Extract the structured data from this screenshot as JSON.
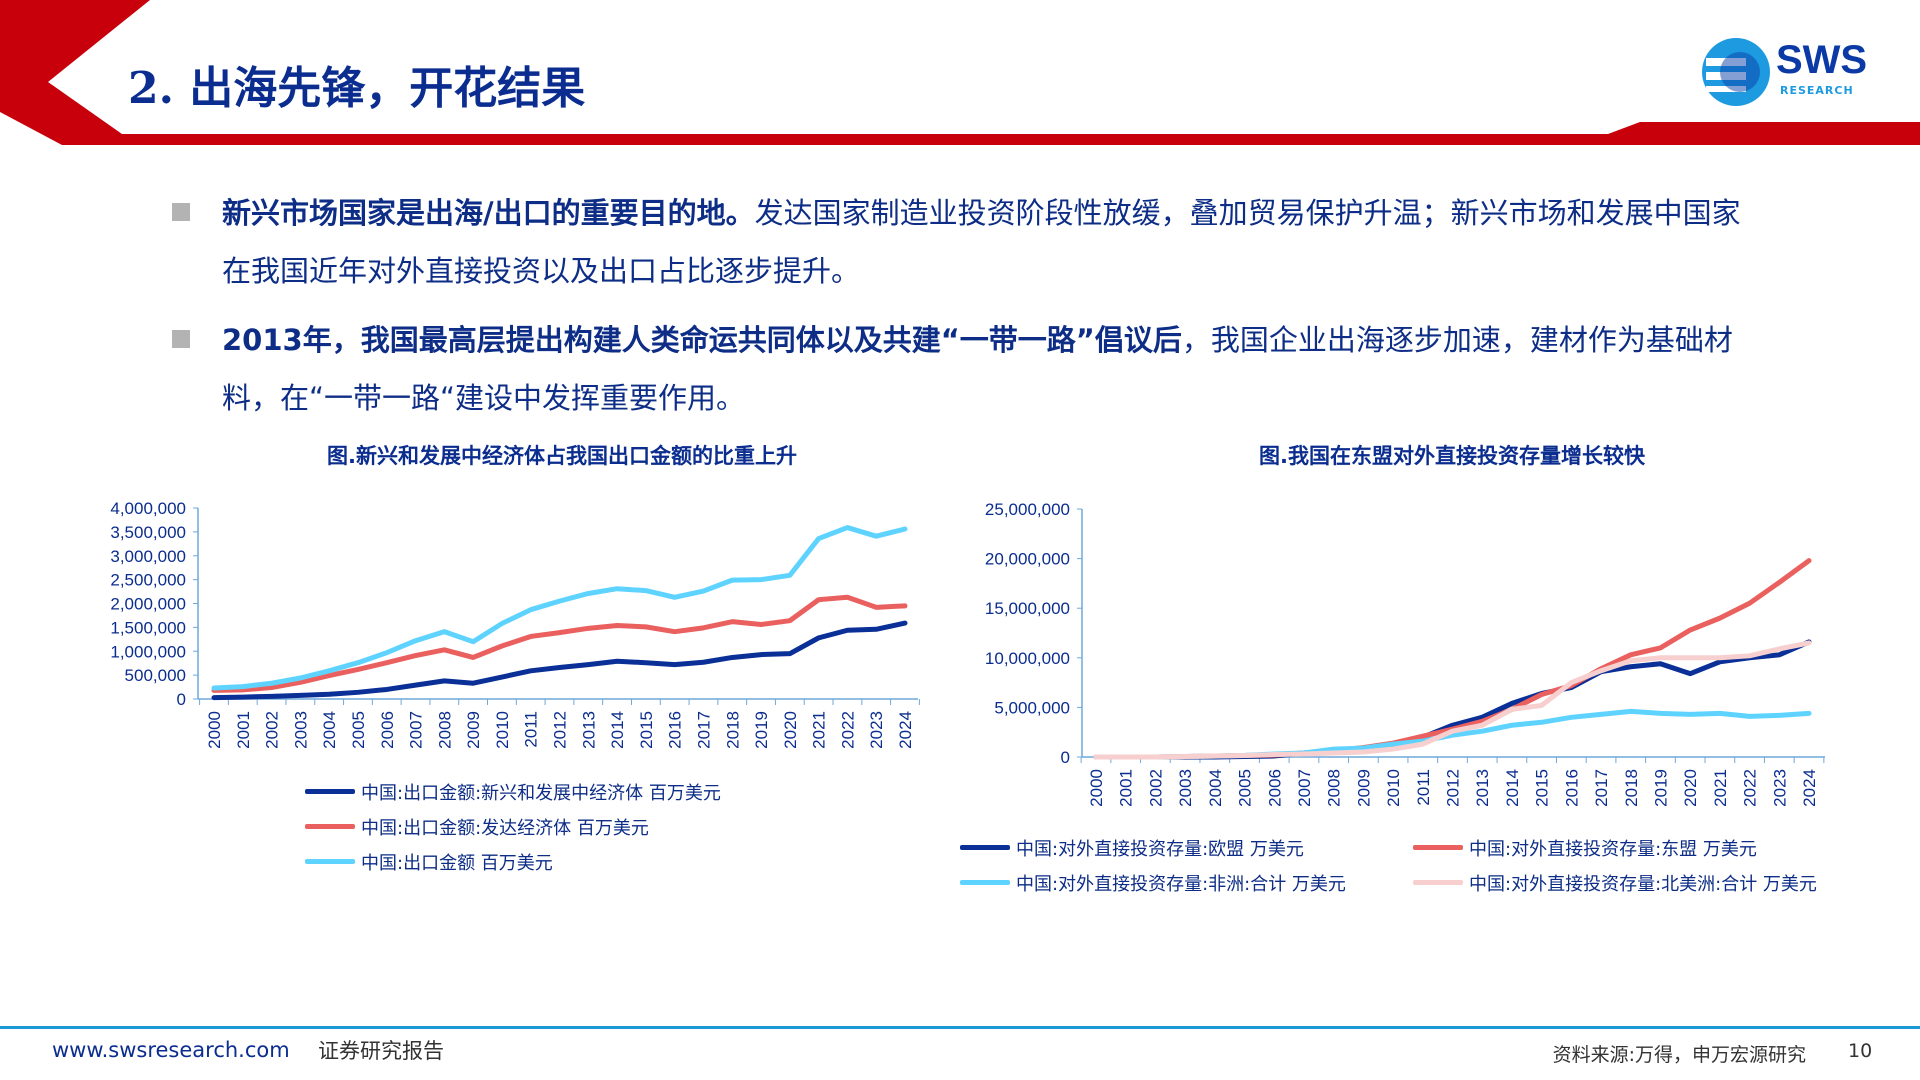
{
  "header": {
    "title": "2. 出海先锋，开花结果",
    "logo_text": "SWS",
    "logo_sub": "RESEARCH",
    "accent": "#c8000b"
  },
  "bullets": [
    {
      "bold": "新兴市场国家是出海/出口的重要目的地。",
      "text": "发达国家制造业投资阶段性放缓，叠加贸易保护升温；新兴市场和发展中国家在我国近年对外直接投资以及出口占比逐步提升。"
    },
    {
      "bold": "2013年，我国最高层提出构建人类命运共同体以及共建“一带一路”倡议后",
      "text": "，我国企业出海逐步加速，建材作为基础材料，在“一带一路“建设中发挥重要作用。"
    }
  ],
  "chart_data": [
    {
      "type": "line",
      "title": "图.新兴和发展中经济体占我国出口金额的比重上升",
      "ylim": [
        0,
        4000000
      ],
      "yticks": [
        "0",
        "500,000",
        "1,000,000",
        "1,500,000",
        "2,000,000",
        "2,500,000",
        "3,000,000",
        "3,500,000",
        "4,000,000"
      ],
      "categories": [
        "2000",
        "2001",
        "2002",
        "2003",
        "2004",
        "2005",
        "2006",
        "2007",
        "2008",
        "2009",
        "2010",
        "2011",
        "2012",
        "2013",
        "2014",
        "2015",
        "2016",
        "2017",
        "2018",
        "2019",
        "2020",
        "2021",
        "2022",
        "2023",
        "2024"
      ],
      "legend": "bottom",
      "series": [
        {
          "name": "中国:出口金额:新兴和发展中经济体 百万美元",
          "color": "#0a2f96",
          "values": [
            30000,
            40000,
            55000,
            75000,
            100000,
            140000,
            200000,
            290000,
            380000,
            330000,
            460000,
            590000,
            660000,
            720000,
            790000,
            760000,
            720000,
            770000,
            870000,
            930000,
            950000,
            1280000,
            1440000,
            1460000,
            1590000
          ]
        },
        {
          "name": "中国:出口金额:发达经济体 百万美元",
          "color": "#e9605e",
          "values": [
            180000,
            190000,
            240000,
            350000,
            490000,
            620000,
            760000,
            910000,
            1030000,
            870000,
            1110000,
            1310000,
            1390000,
            1480000,
            1540000,
            1510000,
            1410000,
            1490000,
            1620000,
            1560000,
            1640000,
            2080000,
            2130000,
            1920000,
            1950000
          ]
        },
        {
          "name": "中国:出口金额 百万美元",
          "color": "#5fd3ff",
          "values": [
            230000,
            260000,
            330000,
            440000,
            590000,
            760000,
            970000,
            1220000,
            1410000,
            1200000,
            1580000,
            1870000,
            2050000,
            2210000,
            2310000,
            2270000,
            2130000,
            2260000,
            2490000,
            2500000,
            2590000,
            3360000,
            3590000,
            3410000,
            3560000
          ]
        }
      ]
    },
    {
      "type": "line",
      "title": "图.我国在东盟对外直接投资存量增长较快",
      "ylim": [
        0,
        25000000
      ],
      "yticks": [
        "0",
        "5,000,000",
        "10,000,000",
        "15,000,000",
        "20,000,000",
        "25,000,000"
      ],
      "categories": [
        "2000",
        "2001",
        "2002",
        "2003",
        "2004",
        "2005",
        "2006",
        "2007",
        "2008",
        "2009",
        "2010",
        "2011",
        "2012",
        "2013",
        "2014",
        "2015",
        "2016",
        "2017",
        "2018",
        "2019",
        "2020",
        "2021",
        "2022",
        "2023",
        "2024"
      ],
      "legend": "bottom",
      "series": [
        {
          "name": "中国:对外直接投资存量:欧盟 万美元",
          "color": "#0a2f96",
          "values": [
            0,
            0,
            0,
            0,
            0,
            50000,
            100000,
            400000,
            600000,
            900000,
            1300000,
            2000000,
            3200000,
            4000000,
            5400000,
            6400000,
            7000000,
            8600000,
            9100000,
            9400000,
            8400000,
            9600000,
            10000000,
            10300000,
            11600000
          ]
        },
        {
          "name": "中国:对外直接投资存量:东盟 万美元",
          "color": "#e9605e",
          "values": [
            0,
            0,
            0,
            50000,
            100000,
            150000,
            200000,
            400000,
            650000,
            950000,
            1400000,
            2100000,
            2800000,
            3600000,
            4800000,
            6300000,
            7200000,
            8900000,
            10300000,
            11000000,
            12800000,
            14000000,
            15500000,
            17600000,
            19800000
          ]
        },
        {
          "name": "中国:对外直接投资存量:非洲:合计 万美元",
          "color": "#5fd3ff",
          "values": [
            0,
            0,
            0,
            50000,
            90000,
            160000,
            300000,
            400000,
            800000,
            900000,
            1300000,
            1600000,
            2200000,
            2600000,
            3200000,
            3500000,
            4000000,
            4300000,
            4600000,
            4400000,
            4300000,
            4400000,
            4100000,
            4200000,
            4400000
          ]
        },
        {
          "name": "中国:对外直接投资存量:北美洲:合计 万美元",
          "color": "#f7cfcf",
          "values": [
            0,
            0,
            0,
            50000,
            100000,
            150000,
            250000,
            300000,
            400000,
            500000,
            800000,
            1300000,
            2600000,
            3200000,
            4800000,
            5200000,
            7500000,
            8700000,
            9700000,
            10000000,
            10000000,
            10000000,
            10200000,
            10900000,
            11500000
          ]
        }
      ]
    }
  ],
  "footer": {
    "website": "www.swsresearch.com",
    "label": "证券研究报告",
    "source": "资料来源:万得，申万宏源研究",
    "page": "10",
    "line_color": "#1b9ad6"
  }
}
